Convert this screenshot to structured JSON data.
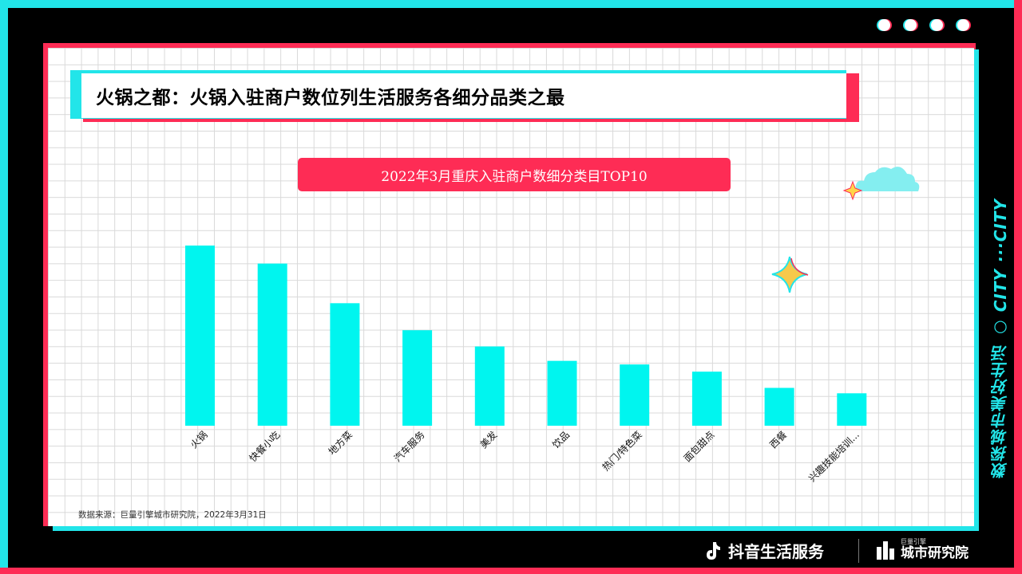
{
  "header": {
    "title": "火锅之都：火锅入驻商户数位列生活服务各细分品类之最"
  },
  "chart_data": {
    "type": "bar",
    "title": "2022年3月重庆入驻商户数细分类目TOP10",
    "categories": [
      "火锅",
      "快餐小吃",
      "地方菜",
      "汽车服务",
      "美发",
      "饮品",
      "热门/特色菜",
      "面包甜点",
      "西餐",
      "兴趣技能培训..."
    ],
    "values": [
      100,
      90,
      68,
      53,
      44,
      36,
      34,
      30,
      21,
      18
    ],
    "ylim": [
      0,
      100
    ],
    "grid": true,
    "bar_color": "#00f5ef"
  },
  "source": "数据来源：巨量引擎城市研究院，2022年3月31日",
  "side_text": "数探城市美好生活 ○ CITY ···CITY",
  "footer": {
    "brand": "抖音生活服务",
    "institute_small": "巨量引擎",
    "institute": "城市研究院"
  },
  "colors": {
    "cyan": "#22e5e9",
    "pink": "#fe2c55"
  }
}
